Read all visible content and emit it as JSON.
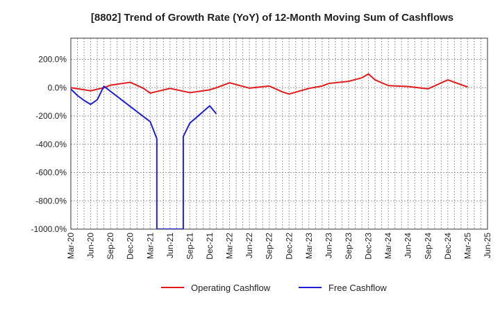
{
  "chart_data": {
    "type": "line",
    "title": "[8802]  Trend of Growth Rate (YoY) of 12-Month Moving Sum of Cashflows",
    "xlabel": "",
    "ylabel": "",
    "ylim": [
      -1000,
      350
    ],
    "y_ticks": [
      200,
      0,
      -200,
      -400,
      -600,
      -800,
      -1000
    ],
    "y_tick_labels": [
      "200.0%",
      "0.0%",
      "-200.0%",
      "-400.0%",
      "-600.0%",
      "-800.0%",
      "-1000.0%"
    ],
    "x_ticks": [
      "Mar-20",
      "Jun-20",
      "Sep-20",
      "Dec-20",
      "Mar-21",
      "Jun-21",
      "Sep-21",
      "Dec-21",
      "Mar-22",
      "Jun-22",
      "Sep-22",
      "Dec-22",
      "Mar-23",
      "Jun-23",
      "Sep-23",
      "Dec-23",
      "Mar-24",
      "Jun-24",
      "Sep-24",
      "Dec-24",
      "Mar-25",
      "Jun-25"
    ],
    "grid": true,
    "legend_position": "bottom",
    "series": [
      {
        "name": "Operating Cashflow",
        "color": "#e31a1c",
        "points": [
          {
            "x": "Mar-20",
            "y": 0
          },
          {
            "x": "Jun-20",
            "y": -22
          },
          {
            "x": "Aug-20",
            "y": 0
          },
          {
            "x": "Sep-20",
            "y": 18
          },
          {
            "x": "Dec-20",
            "y": 38
          },
          {
            "x": "Feb-21",
            "y": -5
          },
          {
            "x": "Mar-21",
            "y": -38
          },
          {
            "x": "Jun-21",
            "y": -5
          },
          {
            "x": "Sep-21",
            "y": -35
          },
          {
            "x": "Dec-21",
            "y": -15
          },
          {
            "x": "Jan-22",
            "y": 0
          },
          {
            "x": "Mar-22",
            "y": 35
          },
          {
            "x": "Jun-22",
            "y": -3
          },
          {
            "x": "Sep-22",
            "y": 12
          },
          {
            "x": "Nov-22",
            "y": -30
          },
          {
            "x": "Dec-22",
            "y": -45
          },
          {
            "x": "Mar-23",
            "y": -5
          },
          {
            "x": "May-23",
            "y": 12
          },
          {
            "x": "Jun-23",
            "y": 30
          },
          {
            "x": "Sep-23",
            "y": 45
          },
          {
            "x": "Nov-23",
            "y": 70
          },
          {
            "x": "Dec-23",
            "y": 97
          },
          {
            "x": "Jan-24",
            "y": 55
          },
          {
            "x": "Mar-24",
            "y": 15
          },
          {
            "x": "Jun-24",
            "y": 8
          },
          {
            "x": "Sep-24",
            "y": -8
          },
          {
            "x": "Dec-24",
            "y": 55
          },
          {
            "x": "Mar-25",
            "y": 5
          }
        ]
      },
      {
        "name": "Free Cashflow",
        "color": "#1f1fd6",
        "points": [
          {
            "x": "Mar-20",
            "y": -10
          },
          {
            "x": "Apr-20",
            "y": -55
          },
          {
            "x": "May-20",
            "y": -90
          },
          {
            "x": "Jun-20",
            "y": -118
          },
          {
            "x": "Jul-20",
            "y": -85
          },
          {
            "x": "Aug-20",
            "y": 10
          },
          {
            "x": "Feb-21",
            "y": -205
          },
          {
            "x": "Mar-21",
            "y": -240
          },
          {
            "x": "Apr-21",
            "y": -360
          },
          {
            "x": "Apr-21",
            "y": -1000
          },
          {
            "x": "Aug-21",
            "y": -1000
          },
          {
            "x": "Aug-21",
            "y": -345
          },
          {
            "x": "Sep-21",
            "y": -250
          },
          {
            "x": "Oct-21",
            "y": -210
          },
          {
            "x": "Dec-21",
            "y": -128
          },
          {
            "x": "Jan-22",
            "y": -185
          }
        ]
      }
    ]
  }
}
